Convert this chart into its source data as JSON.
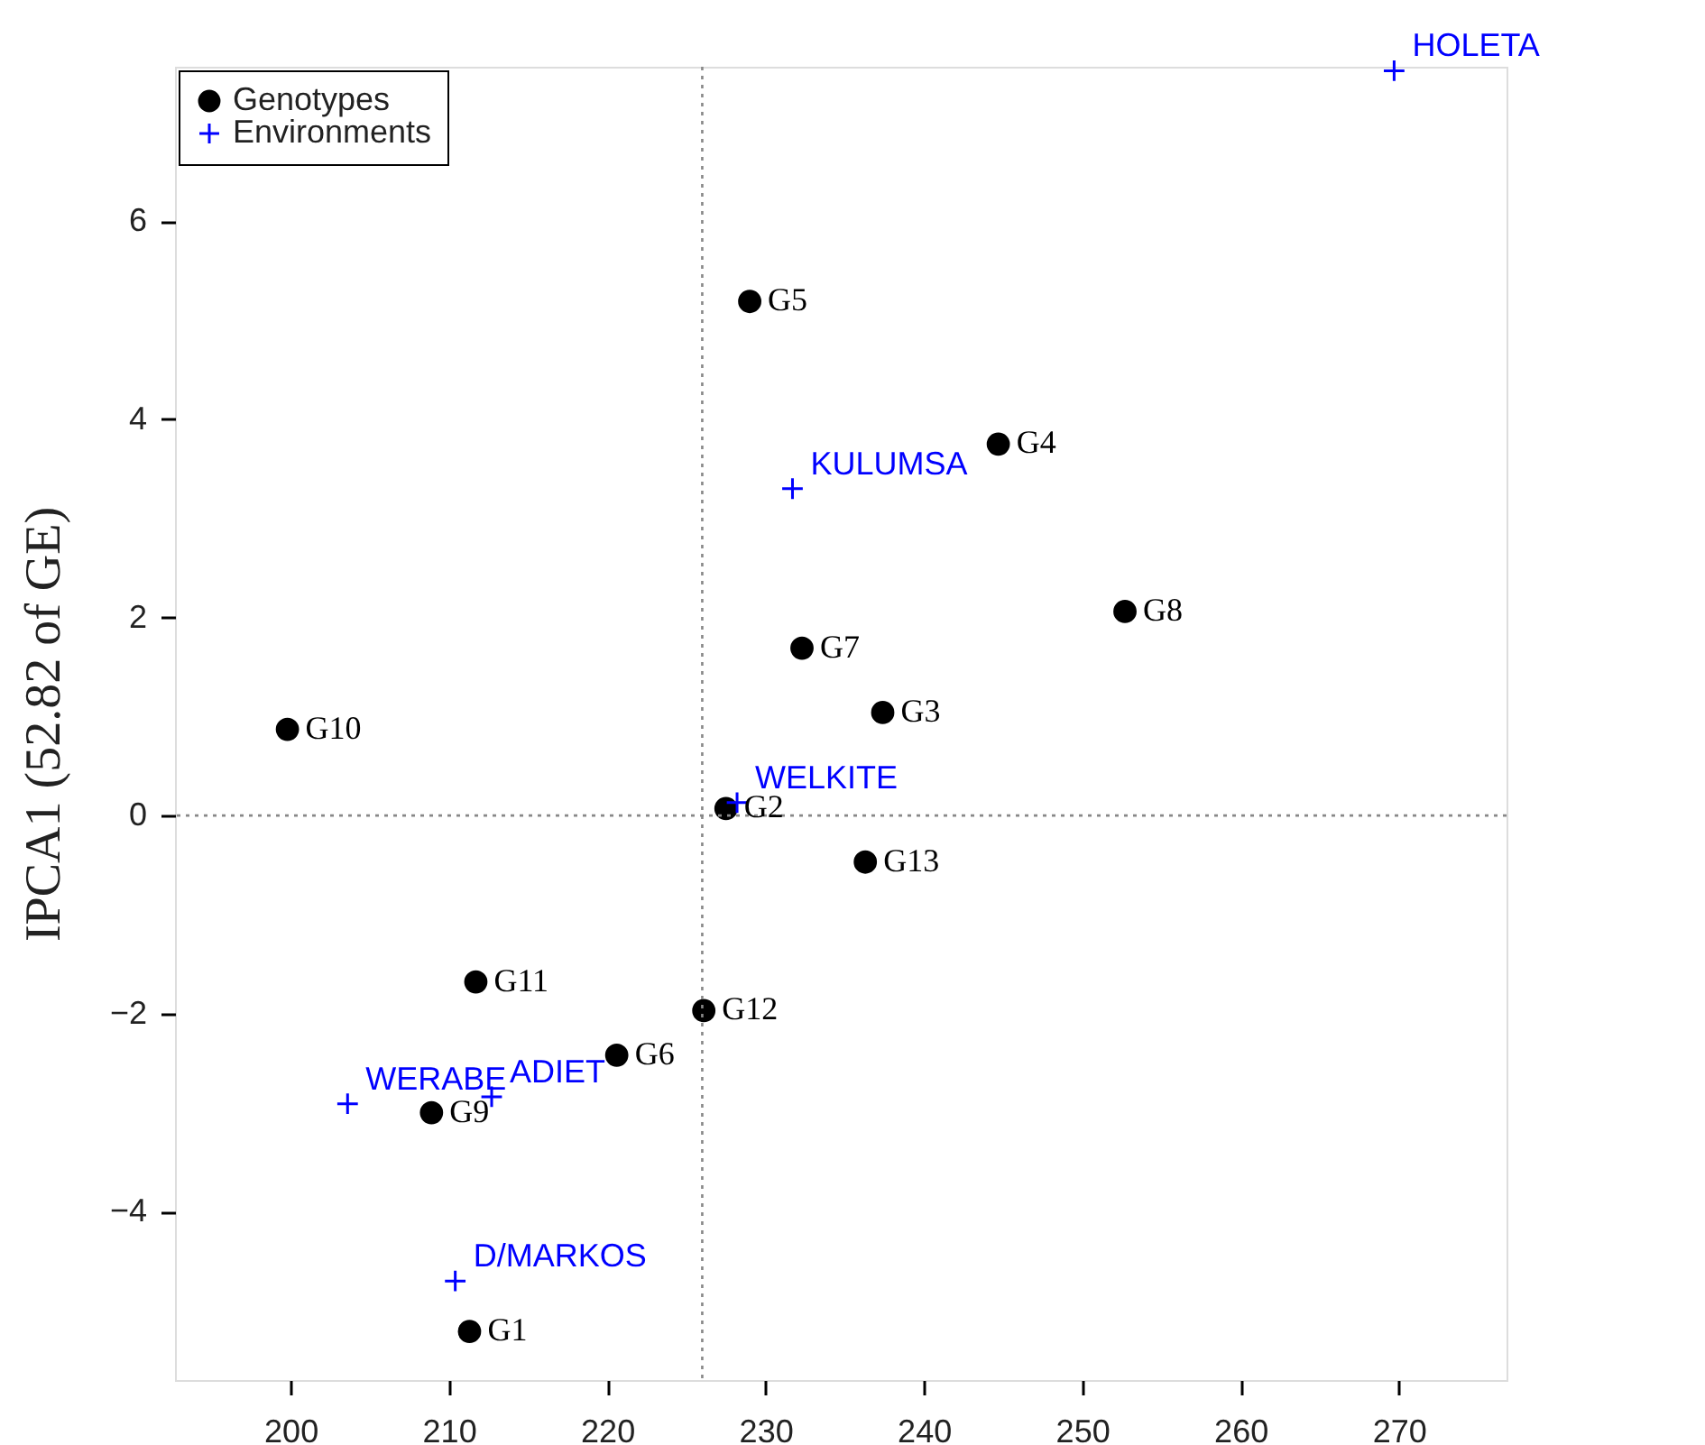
{
  "chart_data": {
    "type": "scatter",
    "ylabel": "IPCA1 (52.82 of GE)",
    "xlim": [
      192.7,
      276.8
    ],
    "xticks": [
      200,
      210,
      220,
      230,
      240,
      250,
      260,
      270
    ],
    "ylim": [
      -5.7,
      7.56
    ],
    "yticks": [
      -4,
      -2,
      0,
      2,
      4,
      6
    ],
    "grid": false,
    "legend": "top left",
    "ref_lines": [
      {
        "axis": "x",
        "value": 226.0,
        "label": null,
        "color": "#888888",
        "line_style": "dotted"
      },
      {
        "axis": "y",
        "value": 0,
        "label": null,
        "color": "#888888",
        "line_style": "dotted"
      }
    ],
    "series": [
      {
        "name": "Genotypes",
        "color": "#000000",
        "marker": "circle",
        "x": [
          211.3,
          227.5,
          237.4,
          244.7,
          229.0,
          220.6,
          232.3,
          252.7,
          208.9,
          199.8,
          211.7,
          226.1,
          236.3
        ],
        "values": [
          -5.21,
          0.07,
          1.04,
          3.75,
          5.19,
          -2.42,
          1.69,
          2.06,
          -3.0,
          0.87,
          -1.68,
          -1.97,
          -0.47
        ],
        "value_labels": [
          "G1",
          "G2",
          "G3",
          "G4",
          "G5",
          "G6",
          "G7",
          "G8",
          "G9",
          "G10",
          "G11",
          "G12",
          "G13"
        ]
      },
      {
        "name": "Environments",
        "color": "#0000ff",
        "marker": "cross",
        "x": [
          269.7,
          231.7,
          228.2,
          203.6,
          212.7,
          210.4
        ],
        "values": [
          7.52,
          3.3,
          0.13,
          -2.91,
          -2.84,
          -4.7
        ],
        "value_labels": [
          "HOLETA",
          "KULUMSA",
          "WELKITE",
          "WERABE",
          "ADIET",
          "D/MARKOS"
        ]
      }
    ]
  }
}
